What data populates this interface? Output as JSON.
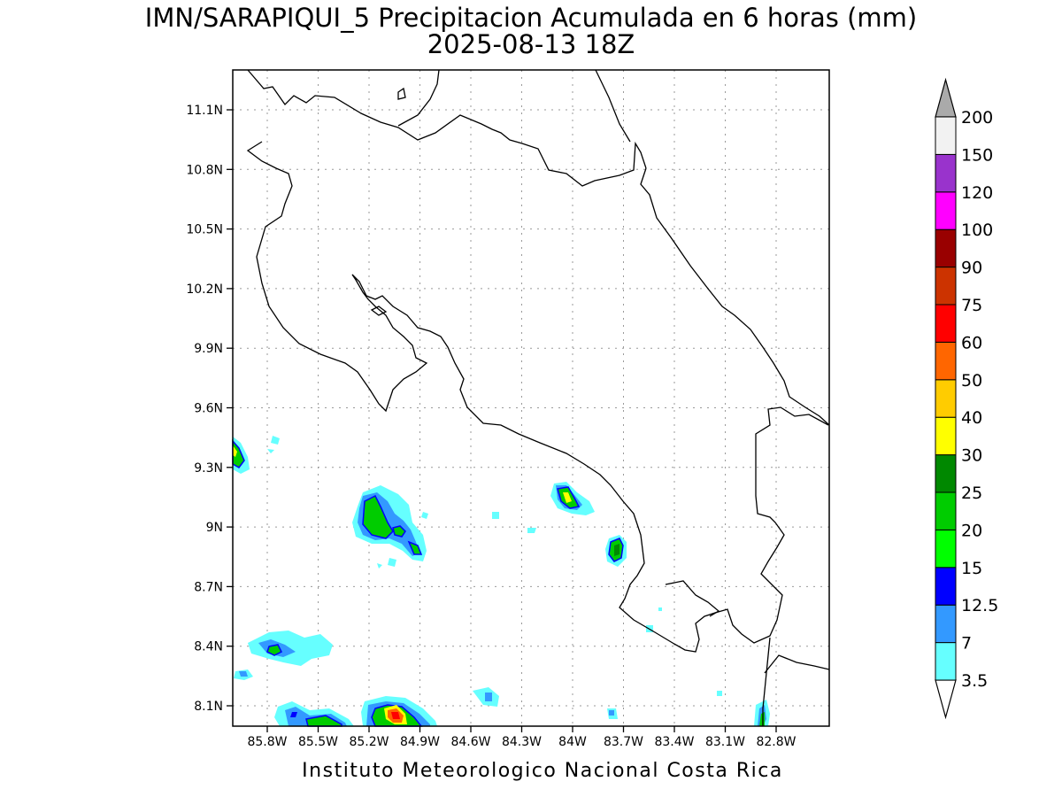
{
  "title_line1": "IMN/SARAPIQUI_5 Precipitacion Acumulada en 6 horas (mm)",
  "title_line2": "2025-08-13 18Z",
  "footer": "Instituto Meteorologico Nacional Costa Rica",
  "lat_labels": [
    "11.1N",
    "10.8N",
    "10.5N",
    "10.2N",
    "9.9N",
    "9.6N",
    "9.3N",
    "9N",
    "8.7N",
    "8.4N",
    "8.1N"
  ],
  "lon_labels": [
    "85.8W",
    "85.5W",
    "85.2W",
    "84.9W",
    "84.6W",
    "84.3W",
    "84W",
    "83.7W",
    "83.4W",
    "83.1W",
    "82.8W"
  ],
  "colorbar": {
    "levels": [
      "3.5",
      "7",
      "12.5",
      "15",
      "20",
      "25",
      "30",
      "40",
      "50",
      "60",
      "75",
      "90",
      "100",
      "120",
      "150",
      "200"
    ],
    "colors": [
      "#66ffff",
      "#3399ff",
      "#0000ff",
      "#00ff00",
      "#00cc00",
      "#008800",
      "#ffff00",
      "#ffcc00",
      "#ff6600",
      "#ff0000",
      "#cc3300",
      "#990000",
      "#ff00ff",
      "#9933cc",
      "#f2f2f2",
      "#aaaaaa"
    ]
  }
}
